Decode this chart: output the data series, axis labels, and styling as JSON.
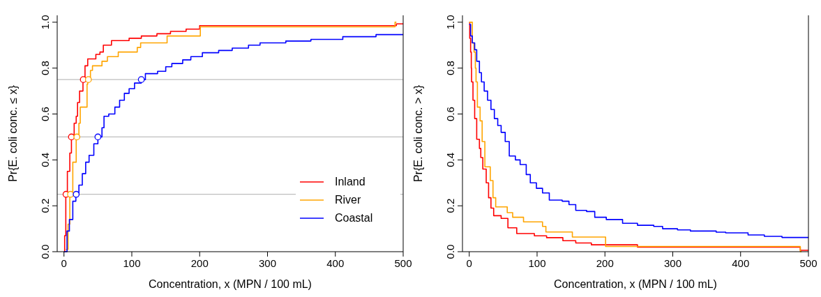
{
  "chart_data": [
    {
      "type": "step",
      "xlabel": "Concentration, x (MPN / 100 mL)",
      "ylabel": "Pr{E. coli conc. ≤ x}",
      "xlim": [
        -10,
        500
      ],
      "ylim": [
        0,
        1.03
      ],
      "xticks": [
        0,
        100,
        200,
        300,
        400,
        500
      ],
      "yticks": [
        {
          "value": 0,
          "label": "0.0"
        },
        {
          "value": 0.2,
          "label": "0.2"
        },
        {
          "value": 0.4,
          "label": "0.4"
        },
        {
          "value": 0.6,
          "label": "0.6"
        },
        {
          "value": 0.8,
          "label": "0.8"
        },
        {
          "value": 1,
          "label": "1.0"
        }
      ],
      "legend": "bottom right",
      "line_style": "solid",
      "ref_lines": [
        {
          "axis": "y",
          "value": 0.25,
          "color": "#bebebe"
        },
        {
          "axis": "y",
          "value": 0.5,
          "color": "#bebebe"
        },
        {
          "axis": "y",
          "value": 0.75,
          "color": "#bebebe"
        }
      ],
      "series": [
        {
          "name": "Inland",
          "color": "#ff0000",
          "x": [
            0,
            1,
            2.7,
            5,
            8.6,
            11,
            15,
            18,
            20,
            23,
            28,
            31,
            35,
            47,
            53,
            58,
            70,
            96,
            114,
            137,
            157,
            180,
            200,
            490,
            500
          ],
          "values": [
            0,
            0.07,
            0.25,
            0.35,
            0.43,
            0.5,
            0.56,
            0.59,
            0.65,
            0.7,
            0.75,
            0.81,
            0.84,
            0.86,
            0.87,
            0.9,
            0.92,
            0.93,
            0.94,
            0.95,
            0.96,
            0.97,
            0.985,
            0.993,
            0.993
          ]
        },
        {
          "name": "River",
          "color": "#ffa500",
          "x": [
            2.7,
            6,
            8.6,
            13,
            18,
            22,
            24,
            34,
            35,
            39,
            42,
            56,
            64,
            80,
            108,
            113,
            152,
            201,
            488,
            490
          ],
          "values": [
            0.01,
            0.12,
            0.25,
            0.39,
            0.5,
            0.56,
            0.63,
            0.73,
            0.75,
            0.79,
            0.81,
            0.83,
            0.85,
            0.87,
            0.89,
            0.91,
            0.94,
            0.98,
            1.0,
            1.0
          ]
        },
        {
          "name": "Coastal",
          "color": "#0000ff",
          "x": [
            0,
            4.5,
            8,
            13,
            17.5,
            22,
            27,
            32,
            37,
            44,
            50,
            56,
            59,
            66,
            75,
            82,
            89,
            96,
            104,
            114,
            120,
            138,
            150,
            159,
            175,
            187,
            204,
            228,
            248,
            272,
            289,
            327,
            364,
            411,
            460,
            500
          ],
          "values": [
            0,
            0.09,
            0.14,
            0.22,
            0.25,
            0.29,
            0.34,
            0.39,
            0.42,
            0.47,
            0.5,
            0.54,
            0.59,
            0.6,
            0.63,
            0.66,
            0.69,
            0.71,
            0.735,
            0.75,
            0.776,
            0.786,
            0.806,
            0.82,
            0.836,
            0.85,
            0.867,
            0.877,
            0.887,
            0.9,
            0.91,
            0.918,
            0.925,
            0.937,
            0.946,
            0.946
          ]
        },
        {
          "type": "scatter",
          "marker": "circle",
          "color": "#ff0000",
          "x": [
            3,
            11,
            28.5
          ],
          "values": [
            0.25,
            0.5,
            0.75
          ]
        },
        {
          "type": "scatter",
          "marker": "circle",
          "color": "#ffa500",
          "x": [
            9.6,
            19,
            36
          ],
          "values": [
            0.25,
            0.5,
            0.75
          ]
        },
        {
          "type": "scatter",
          "marker": "circle",
          "color": "#0000ff",
          "x": [
            18,
            50,
            114
          ],
          "values": [
            0.25,
            0.5,
            0.75
          ]
        }
      ]
    },
    {
      "type": "step",
      "xlabel": "Concentration, x (MPN / 100 mL)",
      "ylabel": "Pr{E. coli conc. > x}",
      "xlim": [
        -10,
        500
      ],
      "ylim": [
        0,
        1.03
      ],
      "xticks": [
        0,
        100,
        200,
        300,
        400,
        500
      ],
      "yticks": [
        {
          "value": 0,
          "label": "0.0"
        },
        {
          "value": 0.2,
          "label": "0.2"
        },
        {
          "value": 0.4,
          "label": "0.4"
        },
        {
          "value": 0.6,
          "label": "0.6"
        },
        {
          "value": 0.8,
          "label": "0.8"
        },
        {
          "value": 1,
          "label": "1.0"
        }
      ],
      "line_style": "solid",
      "series": [
        {
          "color": "#ff0000",
          "x": [
            0,
            0.7,
            2,
            3,
            3.4,
            5.5,
            8,
            11,
            15,
            17,
            20,
            25,
            28.5,
            32,
            36,
            47,
            57,
            70,
            96,
            114,
            138,
            157,
            180,
            248,
            488,
            500
          ],
          "values": [
            1.0,
            0.93,
            0.87,
            0.8,
            0.74,
            0.66,
            0.58,
            0.49,
            0.45,
            0.41,
            0.36,
            0.3,
            0.235,
            0.19,
            0.157,
            0.145,
            0.104,
            0.079,
            0.069,
            0.061,
            0.048,
            0.038,
            0.03,
            0.02,
            0.006,
            0.006
          ]
        },
        {
          "color": "#ffa500",
          "x": [
            0,
            4.5,
            7,
            9,
            10,
            12,
            16,
            19,
            23,
            31,
            35,
            39,
            56,
            64,
            80,
            108,
            113,
            152,
            201,
            488,
            490
          ],
          "values": [
            1.0,
            0.91,
            0.87,
            0.8,
            0.74,
            0.63,
            0.57,
            0.48,
            0.37,
            0.31,
            0.235,
            0.195,
            0.17,
            0.15,
            0.13,
            0.11,
            0.086,
            0.064,
            0.023,
            0,
            0
          ]
        },
        {
          "color": "#0000ff",
          "x": [
            0,
            2,
            4.5,
            8,
            11,
            15,
            18,
            22,
            27,
            32,
            37,
            42,
            47,
            53,
            59,
            68,
            75,
            84,
            90,
            99,
            108,
            118,
            137,
            147,
            157,
            173,
            185,
            202,
            226,
            248,
            272,
            285,
            307,
            326,
            364,
            378,
            411,
            435,
            461,
            500
          ],
          "values": [
            0.99,
            0.94,
            0.91,
            0.88,
            0.83,
            0.78,
            0.74,
            0.7,
            0.66,
            0.62,
            0.58,
            0.55,
            0.52,
            0.48,
            0.417,
            0.4,
            0.38,
            0.336,
            0.3,
            0.276,
            0.256,
            0.225,
            0.22,
            0.205,
            0.18,
            0.175,
            0.15,
            0.14,
            0.124,
            0.115,
            0.11,
            0.1,
            0.095,
            0.09,
            0.085,
            0.082,
            0.073,
            0.067,
            0.062,
            0.062
          ]
        }
      ]
    }
  ]
}
